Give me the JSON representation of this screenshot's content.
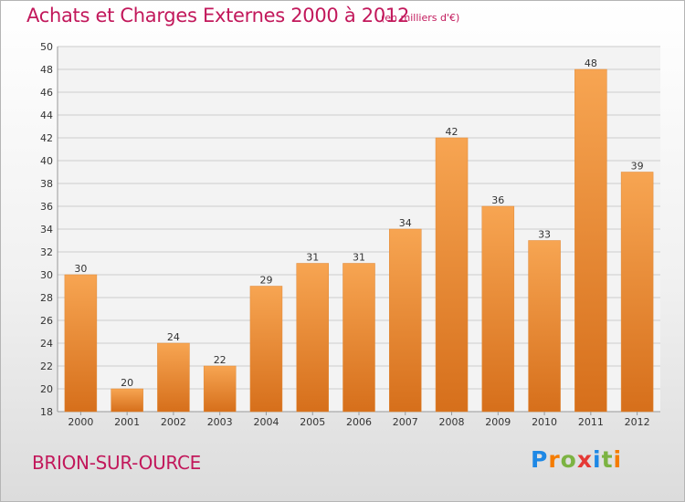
{
  "header": {
    "title": "Achats et Charges Externes 2000 à 2012",
    "subtitle": "(en milliers d'€)"
  },
  "footer": {
    "town": "BRION-SUR-OURCE",
    "logo_text": "Proxiti"
  },
  "colors": {
    "accent": "#c2185b",
    "bar_light": "#f7a552",
    "bar_dark": "#d66f1b",
    "grid": "#cccccc"
  },
  "chart_data": {
    "type": "bar",
    "categories": [
      "2000",
      "2001",
      "2002",
      "2003",
      "2004",
      "2005",
      "2006",
      "2007",
      "2008",
      "2009",
      "2010",
      "2011",
      "2012"
    ],
    "values": [
      30,
      20,
      24,
      22,
      29,
      31,
      31,
      34,
      42,
      36,
      33,
      48,
      39
    ],
    "ylim": [
      18,
      50
    ],
    "yticks": [
      18,
      20,
      22,
      24,
      26,
      28,
      30,
      32,
      34,
      36,
      38,
      40,
      42,
      44,
      46,
      48,
      50
    ],
    "grid": true,
    "legend": "none"
  }
}
